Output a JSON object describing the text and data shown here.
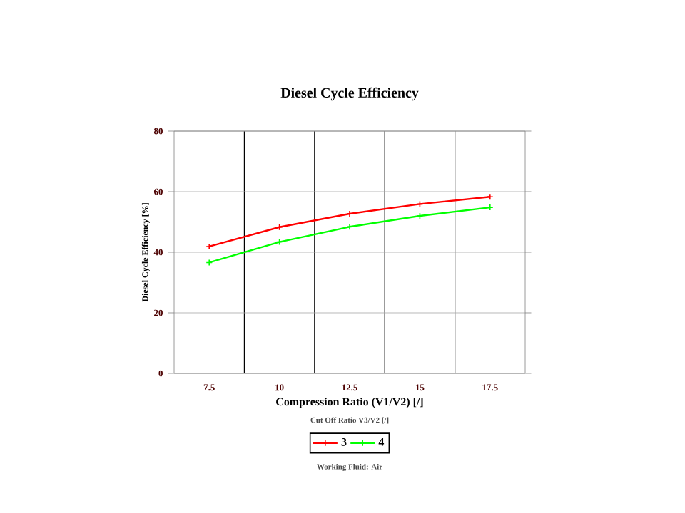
{
  "chart_data": {
    "type": "line",
    "title": "Diesel Cycle Efficiency",
    "xlabel": "Compression Ratio (V1/V2) [/]",
    "ylabel": "Diesel Cycle Efficiency [%]",
    "legend_title": "Cut Off Ratio V3/V2 [/]",
    "categories": [
      "7.5",
      "10",
      "12.5",
      "15",
      "17.5"
    ],
    "series": [
      {
        "name": "3",
        "color": "#ff0000",
        "values": [
          41.9,
          48.3,
          52.7,
          55.9,
          58.3
        ]
      },
      {
        "name": "4",
        "color": "#00ff00",
        "values": [
          36.6,
          43.4,
          48.4,
          52.0,
          54.8
        ]
      }
    ],
    "ylim": [
      0,
      80
    ],
    "yticks": [
      0,
      20,
      40,
      60,
      80
    ],
    "grid": true,
    "legend": "bottom",
    "marker": "cross",
    "line_style": "solid",
    "annotations": [
      "Working Fluid:  Air"
    ]
  }
}
